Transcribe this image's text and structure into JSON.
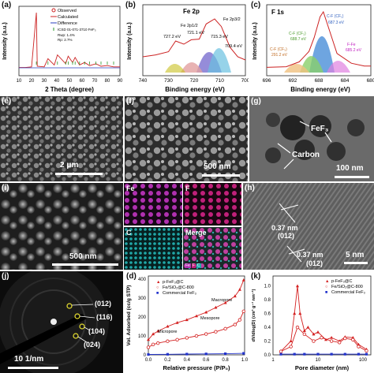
{
  "panels": {
    "a": {
      "label": "(a)",
      "legend": [
        "Observed",
        "Calculated",
        "Difference",
        "ICSD 01-071-3710 FeF₃"
      ],
      "stats": [
        "Rwp: 1.4%",
        "Rp: 2.7%"
      ],
      "xlabel": "2 Theta (degree)",
      "ylabel": "Intensity (a.u.)",
      "xticks": [
        "10",
        "20",
        "30",
        "40",
        "50",
        "60",
        "70",
        "80",
        "90"
      ]
    },
    "b": {
      "label": "(b)",
      "title": "Fe 2p",
      "annotations": [
        "Fe 2p1/2",
        "727.2 eV",
        "721.1 eV",
        "Fe 2p3/2",
        "715.3 eV",
        "709.4 eV"
      ],
      "xlabel": "Binding energy (eV)",
      "ylabel": "Intensity (a.u.)",
      "xticks": [
        "740",
        "730",
        "720",
        "710",
        "700"
      ]
    },
    "c": {
      "label": "(c)",
      "title": "F 1s",
      "annotations": [
        "C-F (CF₁)",
        "687.3 eV",
        "C-F (CF₂)",
        "688.7 eV",
        "C-F (CF₃)",
        "291.2 eV",
        "F-Fe",
        "685.2 eV"
      ],
      "xlabel": "Binding energy (eV)",
      "ylabel": "Intensity (a.u.)",
      "xticks": [
        "696",
        "692",
        "688",
        "684",
        "680"
      ]
    },
    "e": {
      "label": "(e)",
      "scale": "2 μm"
    },
    "f": {
      "label": "(f)",
      "scale": "500 nm"
    },
    "g": {
      "label": "(g)",
      "labels": [
        "FeF₃",
        "Carbon"
      ],
      "scale": "100 nm"
    },
    "i": {
      "label": "(i)",
      "scale": "500 nm",
      "maps": [
        "Fe",
        "F",
        "C",
        "Merge"
      ],
      "merge_legend": [
        "Fe",
        "F",
        "C"
      ]
    },
    "h": {
      "label": "(h)",
      "labels": [
        "0.37 nm",
        "(012)",
        "0.37 nm",
        "(012)"
      ],
      "scale": "5 nm"
    },
    "j": {
      "label": "(j)",
      "rings": [
        "(012)",
        "(116)",
        "(104)",
        "(024)"
      ],
      "scale": "10 1/nm"
    },
    "d": {
      "label": "(d)",
      "legend": [
        "p-FeF₃@C",
        "Fe/SiO₂@C-800",
        "Commercial FeF₃"
      ],
      "annotations": [
        "Macropore",
        "Mesopore",
        "Micropore"
      ],
      "xlabel": "Relative pressure (P/P₀)",
      "ylabel": "Vol. Adsorbed (cc/g STP)",
      "xticks": [
        "0.0",
        "0.2",
        "0.4",
        "0.6",
        "0.8",
        "1.0"
      ],
      "yticks": [
        "0",
        "100",
        "200",
        "300",
        "400"
      ]
    },
    "k": {
      "label": "(k)",
      "legend": [
        "p-FeF₃@C",
        "Fe/SiO₂@C-800",
        "Commercial FeF₃"
      ],
      "xlabel": "Pore diameter (nm)",
      "ylabel": "dV/dlog(D) (cm³ g⁻¹ nm⁻¹)",
      "xticks": [
        "1",
        "10",
        "100"
      ],
      "yticks": [
        "0.0",
        "0.2",
        "0.4",
        "0.6",
        "0.8",
        "1.0"
      ]
    }
  },
  "colors": {
    "observed": "#cc2222",
    "calculated": "#d42a2a",
    "difference": "#2a3fbf",
    "marks": "#2a9a2a",
    "fe": "#d43fd4",
    "f": "#e0208a",
    "c": "#20c0c0",
    "commercial": "#2233cc",
    "pfef3": "#d42020"
  },
  "chart_data": [
    {
      "type": "line",
      "title": "",
      "xlabel": "2 Theta (degree)",
      "ylabel": "Intensity (a.u.)",
      "xlim": [
        10,
        90
      ],
      "series": [
        {
          "name": "Observed",
          "x": [
            10,
            15,
            20,
            23.8,
            24.5,
            30,
            33,
            38,
            40.5,
            47,
            49,
            52.5,
            54.5,
            58,
            62,
            66,
            71,
            75,
            80,
            85,
            90
          ],
          "y": [
            0.08,
            0.08,
            0.09,
            0.95,
            0.1,
            0.09,
            0.22,
            0.12,
            0.28,
            0.14,
            0.26,
            0.16,
            0.24,
            0.12,
            0.16,
            0.11,
            0.14,
            0.1,
            0.11,
            0.09,
            0.09
          ]
        }
      ]
    },
    {
      "type": "line",
      "title": "Fe 2p",
      "xlabel": "Binding energy (eV)",
      "ylabel": "Intensity (a.u.)",
      "xlim": [
        740,
        700
      ],
      "series": [
        {
          "name": "",
          "x": [
            740,
            735,
            730,
            727.2,
            724,
            721.1,
            718,
            715.3,
            712,
            709.4,
            706,
            703,
            700
          ],
          "y": [
            0.3,
            0.33,
            0.38,
            0.55,
            0.5,
            0.57,
            0.58,
            0.82,
            0.9,
            0.78,
            0.45,
            0.3,
            0.25
          ]
        }
      ]
    },
    {
      "type": "line",
      "title": "F 1s",
      "xlabel": "Binding energy (eV)",
      "ylabel": "Intensity (a.u.)",
      "xlim": [
        696,
        680
      ],
      "series": [
        {
          "name": "",
          "x": [
            696,
            693,
            691,
            689.5,
            688.7,
            687.8,
            687.3,
            686,
            685.2,
            683,
            681,
            680
          ],
          "y": [
            0.12,
            0.13,
            0.2,
            0.35,
            0.55,
            0.85,
            0.92,
            0.55,
            0.32,
            0.18,
            0.14,
            0.14
          ]
        }
      ]
    },
    {
      "type": "line",
      "title": "",
      "xlabel": "Relative pressure (P/P₀)",
      "ylabel": "Vol. Adsorbed (cc/g STP)",
      "xlim": [
        0,
        1
      ],
      "ylim": [
        0,
        400
      ],
      "series": [
        {
          "name": "p-FeF₃@C",
          "x": [
            0.0,
            0.05,
            0.1,
            0.2,
            0.3,
            0.4,
            0.5,
            0.6,
            0.7,
            0.8,
            0.9,
            0.95,
            0.99
          ],
          "y": [
            80,
            110,
            125,
            150,
            170,
            185,
            205,
            225,
            250,
            275,
            310,
            345,
            395
          ]
        },
        {
          "name": "Fe/SiO₂@C-800",
          "x": [
            0.0,
            0.05,
            0.1,
            0.2,
            0.3,
            0.4,
            0.5,
            0.6,
            0.7,
            0.8,
            0.9,
            0.95,
            0.99
          ],
          "y": [
            40,
            55,
            62,
            72,
            80,
            90,
            100,
            110,
            122,
            138,
            160,
            185,
            230
          ]
        },
        {
          "name": "Commercial FeF₃",
          "x": [
            0.0,
            0.2,
            0.4,
            0.6,
            0.8,
            0.99
          ],
          "y": [
            2,
            3,
            4,
            5,
            6,
            8
          ]
        }
      ]
    },
    {
      "type": "line",
      "title": "",
      "xlabel": "Pore diameter (nm)",
      "ylabel": "dV/dlog(D) (cm³ g⁻¹ nm⁻¹)",
      "xlim": [
        1,
        150
      ],
      "ylim": [
        0,
        1.1
      ],
      "xscale": "log",
      "series": [
        {
          "name": "p-FeF₃@C",
          "x": [
            1.5,
            2.5,
            3,
            3.5,
            4,
            5,
            6,
            8,
            10,
            15,
            20,
            30,
            40,
            60,
            80,
            120
          ],
          "y": [
            0.05,
            0.2,
            0.6,
            1.0,
            0.6,
            0.35,
            0.4,
            0.3,
            0.33,
            0.22,
            0.25,
            0.2,
            0.26,
            0.25,
            0.15,
            0.08
          ]
        },
        {
          "name": "Fe/SiO₂@C-800",
          "x": [
            1.5,
            2.5,
            3.5,
            5,
            8,
            12,
            20,
            30,
            40,
            60,
            80,
            120
          ],
          "y": [
            0.05,
            0.12,
            0.4,
            0.3,
            0.2,
            0.25,
            0.2,
            0.18,
            0.24,
            0.22,
            0.12,
            0.06
          ]
        },
        {
          "name": "Commercial FeF₃",
          "x": [
            1.5,
            3,
            5,
            10,
            20,
            40,
            80,
            120
          ],
          "y": [
            0.01,
            0.01,
            0.01,
            0.01,
            0.01,
            0.01,
            0.01,
            0.01
          ]
        }
      ]
    }
  ]
}
